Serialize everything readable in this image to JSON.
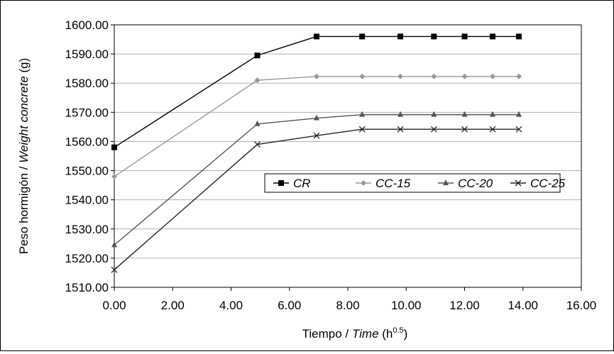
{
  "chart_data": {
    "type": "line",
    "ylabel_parts": {
      "a": "Peso hormigón / ",
      "b": "Weight concrete",
      "c": " (g)"
    },
    "xlabel_parts": {
      "a": "Tiempo / ",
      "b": "Time",
      "c": " (h",
      "sup": "0.5",
      "d": ")"
    },
    "xlim": [
      0,
      16
    ],
    "ylim": [
      1510,
      1600
    ],
    "x_ticks": [
      "0.00",
      "2.00",
      "4.00",
      "6.00",
      "8.00",
      "10.00",
      "12.00",
      "14.00",
      "16.00"
    ],
    "y_ticks": [
      "1510.00",
      "1520.00",
      "1530.00",
      "1540.00",
      "1550.00",
      "1560.00",
      "1570.00",
      "1580.00",
      "1590.00",
      "1600.00"
    ],
    "grid": "horizontal",
    "legend_position": "center-right",
    "x": [
      0,
      4.9,
      6.93,
      8.49,
      9.8,
      10.95,
      12.0,
      12.96,
      13.86
    ],
    "series": [
      {
        "name": "CR",
        "marker": "square",
        "color": "#000000",
        "values": [
          1558,
          1589.5,
          1596,
          1596,
          1596,
          1596,
          1596,
          1596,
          1596
        ]
      },
      {
        "name": "CC-15",
        "marker": "diamond",
        "color": "#999999",
        "values": [
          1548,
          1581,
          1582.3,
          1582.3,
          1582.3,
          1582.3,
          1582.3,
          1582.3,
          1582.3
        ]
      },
      {
        "name": "CC-20",
        "marker": "triangle",
        "color": "#555555",
        "values": [
          1524.5,
          1566,
          1568,
          1569.2,
          1569.2,
          1569.2,
          1569.2,
          1569.2,
          1569.2
        ]
      },
      {
        "name": "CC-25",
        "marker": "x",
        "color": "#222222",
        "values": [
          1516,
          1559,
          1562,
          1564.2,
          1564.2,
          1564.2,
          1564.2,
          1564.2,
          1564.2
        ]
      }
    ]
  }
}
